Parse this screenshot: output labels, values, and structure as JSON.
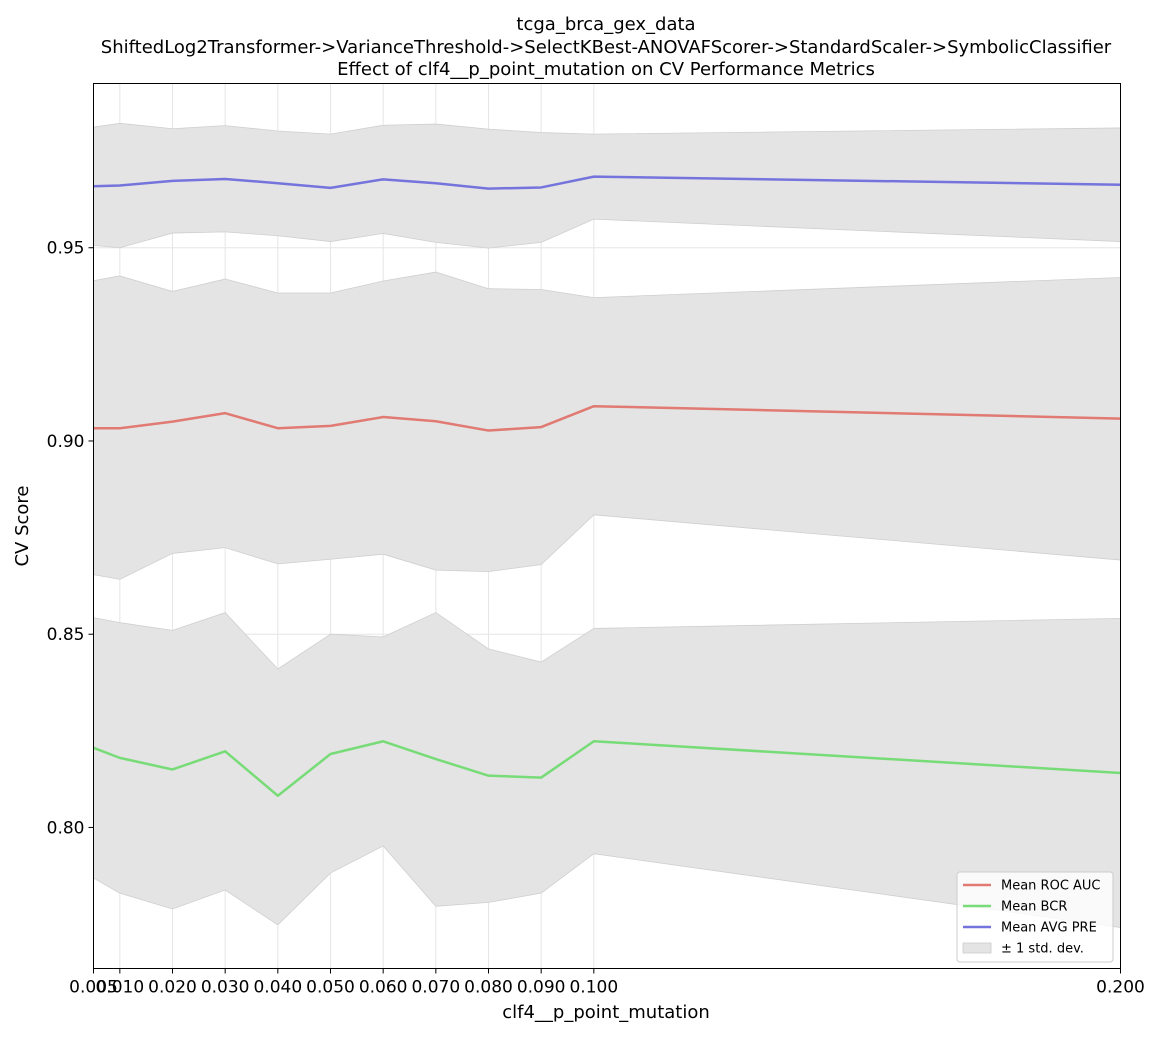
{
  "chart_data": {
    "type": "line",
    "title_lines": [
      "tcga_brca_gex_data",
      "ShiftedLog2Transformer->VarianceThreshold->SelectKBest-ANOVAFScorer->StandardScaler->SymbolicClassifier",
      "Effect of clf4__p_point_mutation on CV Performance Metrics"
    ],
    "xlabel": "clf4__p_point_mutation",
    "ylabel": "CV Score",
    "xlim": [
      0.005,
      0.2
    ],
    "ylim": [
      0.7635,
      0.9925
    ],
    "grid": true,
    "legend_position": "lower-right",
    "x": [
      0.005,
      0.01,
      0.02,
      0.03,
      0.04,
      0.05,
      0.06,
      0.07,
      0.08,
      0.09,
      0.1,
      0.2
    ],
    "x_tick_labels": [
      "0.005",
      "0.010",
      "0.020",
      "0.030",
      "0.040",
      "0.050",
      "0.060",
      "0.070",
      "0.080",
      "0.090",
      "0.100",
      "0.200"
    ],
    "y_ticks": [
      0.8,
      0.85,
      0.9,
      0.95
    ],
    "y_tick_labels": [
      "0.80",
      "0.85",
      "0.90",
      "0.95"
    ],
    "series": [
      {
        "name": "Mean ROC AUC",
        "color": "#e07a72",
        "values": [
          0.9033,
          0.9033,
          0.905,
          0.9072,
          0.9033,
          0.9039,
          0.9062,
          0.9051,
          0.9027,
          0.9036,
          0.909,
          0.9058
        ],
        "upper": [
          0.9415,
          0.9427,
          0.9387,
          0.9419,
          0.9383,
          0.9383,
          0.9414,
          0.9437,
          0.9394,
          0.9392,
          0.9371,
          0.9423
        ],
        "lower": [
          0.8654,
          0.8642,
          0.8709,
          0.8724,
          0.8682,
          0.8694,
          0.8707,
          0.8666,
          0.8662,
          0.868,
          0.8809,
          0.8692
        ]
      },
      {
        "name": "Mean BCR",
        "color": "#77dc77",
        "values": [
          0.8206,
          0.818,
          0.815,
          0.8197,
          0.8082,
          0.819,
          0.8223,
          0.8177,
          0.8134,
          0.8129,
          0.8223,
          0.8141
        ],
        "upper": [
          0.8543,
          0.853,
          0.851,
          0.8556,
          0.841,
          0.85,
          0.8493,
          0.8556,
          0.8462,
          0.8428,
          0.8515,
          0.8541
        ],
        "lower": [
          0.7869,
          0.783,
          0.7789,
          0.7838,
          0.7748,
          0.7882,
          0.7952,
          0.7796,
          0.7806,
          0.783,
          0.7932,
          0.7741
        ]
      },
      {
        "name": "Mean AVG PRE",
        "color": "#7474dc",
        "values": [
          0.9659,
          0.9661,
          0.9673,
          0.9678,
          0.9667,
          0.9655,
          0.9677,
          0.9667,
          0.9653,
          0.9656,
          0.9684,
          0.9663
        ],
        "upper": [
          0.9812,
          0.9822,
          0.9808,
          0.9816,
          0.9802,
          0.9794,
          0.9817,
          0.982,
          0.9807,
          0.9798,
          0.9794,
          0.981
        ],
        "lower": [
          0.9506,
          0.95,
          0.9538,
          0.9541,
          0.9531,
          0.9516,
          0.9537,
          0.9514,
          0.9499,
          0.9514,
          0.9574,
          0.9516
        ]
      }
    ],
    "band_color": "#e4e4e4",
    "band_label": "± 1 std. dev."
  }
}
